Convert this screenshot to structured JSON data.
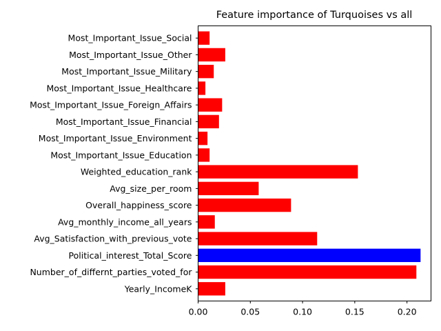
{
  "chart_data": {
    "type": "bar",
    "orientation": "horizontal",
    "title": "Feature importance of Turquoises vs all",
    "xlabel": "",
    "ylabel": "",
    "xlim": [
      0,
      0.223
    ],
    "xticks": [
      0.0,
      0.05,
      0.1,
      0.15,
      0.2
    ],
    "xtick_labels": [
      "0.00",
      "0.05",
      "0.10",
      "0.15",
      "0.20"
    ],
    "grid": false,
    "colors": {
      "default": "#ff0000",
      "highlight": "#0000ff"
    },
    "highlight_category": "Political_interest_Total_Score",
    "categories": [
      "Yearly_IncomeK",
      "Number_of_differnt_parties_voted_for",
      "Political_interest_Total_Score",
      "Avg_Satisfaction_with_previous_vote",
      "Avg_monthly_income_all_years",
      "Overall_happiness_score",
      "Avg_size_per_room",
      "Weighted_education_rank",
      "Most_Important_Issue_Education",
      "Most_Important_Issue_Environment",
      "Most_Important_Issue_Financial",
      "Most_Important_Issue_Foreign_Affairs",
      "Most_Important_Issue_Healthcare",
      "Most_Important_Issue_Military",
      "Most_Important_Issue_Other",
      "Most_Important_Issue_Social"
    ],
    "values": [
      0.026,
      0.209,
      0.213,
      0.114,
      0.016,
      0.089,
      0.058,
      0.153,
      0.011,
      0.009,
      0.02,
      0.023,
      0.007,
      0.015,
      0.026,
      0.011
    ]
  }
}
